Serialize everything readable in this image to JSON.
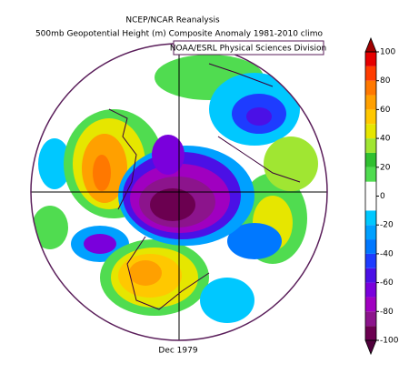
{
  "header": {
    "title": "NCEP/NCAR Reanalysis",
    "subtitle": "500mb Geopotential Height (m) Composite Anomaly 1981-2010 climo",
    "credit": "NOAA/ESRL Physical Sciences Division"
  },
  "map": {
    "date": "Dec 1979"
  },
  "colorbar": {
    "lim": [
      -100,
      100
    ],
    "ticks": [
      100,
      80,
      60,
      40,
      20,
      0,
      -20,
      -40,
      -60,
      -80,
      -100
    ],
    "colors": [
      "#6b0050",
      "#8c148c",
      "#a000c0",
      "#7a00dc",
      "#4b10e6",
      "#1e3cff",
      "#0078ff",
      "#00a0ff",
      "#00c8ff",
      "#ffffff",
      "#ffffff",
      "#50dc50",
      "#30c030",
      "#a0e632",
      "#e6e600",
      "#ffc800",
      "#ffa000",
      "#ff7800",
      "#ff3c00",
      "#e60000"
    ],
    "under_color": "#50003c",
    "over_color": "#a00000"
  }
}
